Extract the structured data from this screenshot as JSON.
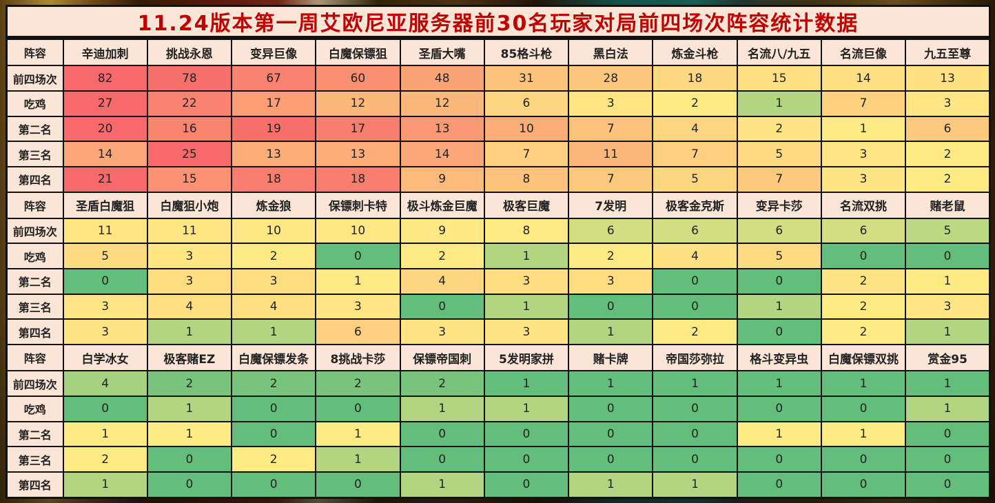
{
  "title": "11.24版本第一周艾欧尼亚服务器前30名玩家对局前四场次阵容统计数据",
  "styles": {
    "title_color": "#c00000",
    "header_bg": "#fbe5d6",
    "border_color": "#111111",
    "heat_min_color": "#63BE7B",
    "heat_mid_color": "#FFEB84",
    "heat_max_color": "#F8696B"
  },
  "chart_data": {
    "type": "heatmap",
    "title": "11.24版本第一周艾欧尼亚服务器前30名玩家对局前四场次阵容统计数据",
    "corner_label": "阵容",
    "stat_row_labels": [
      "前四场次",
      "吃鸡",
      "第二名",
      "第三名",
      "第四名"
    ],
    "color_scale_note": "3-color scale per stat row across all sections: min green #63BE7B, 50th percentile yellow #FFEB84, max red #F8696B",
    "sections": [
      {
        "comps": [
          "辛迪加刺",
          "挑战永恩",
          "变异巨像",
          "白魔保镖狙",
          "圣盾大嘴",
          "85格斗枪",
          "黑白法",
          "炼金斗枪",
          "名流八/九五",
          "名流巨像",
          "九五至尊"
        ],
        "values": [
          [
            82,
            78,
            67,
            60,
            48,
            31,
            28,
            18,
            15,
            14,
            13
          ],
          [
            27,
            22,
            17,
            12,
            12,
            6,
            3,
            2,
            1,
            7,
            3
          ],
          [
            20,
            16,
            19,
            17,
            13,
            10,
            7,
            4,
            2,
            1,
            6
          ],
          [
            14,
            25,
            13,
            13,
            14,
            7,
            11,
            7,
            5,
            3,
            2
          ],
          [
            21,
            15,
            18,
            18,
            9,
            8,
            7,
            5,
            7,
            3,
            2
          ]
        ]
      },
      {
        "comps": [
          "圣盾白魔狙",
          "白魔狙小炮",
          "炼金狼",
          "保镖刺卡特",
          "极斗炼金巨魔",
          "极客巨魔",
          "7发明",
          "极客金克斯",
          "变异卡莎",
          "名流双挑",
          "赌老鼠"
        ],
        "values": [
          [
            11,
            11,
            10,
            10,
            9,
            8,
            6,
            6,
            6,
            6,
            5
          ],
          [
            5,
            3,
            2,
            0,
            2,
            1,
            2,
            4,
            5,
            0,
            0
          ],
          [
            0,
            3,
            3,
            1,
            4,
            3,
            3,
            0,
            0,
            2,
            1
          ],
          [
            3,
            4,
            4,
            3,
            0,
            1,
            0,
            0,
            1,
            2,
            3
          ],
          [
            3,
            1,
            1,
            6,
            3,
            3,
            1,
            2,
            0,
            2,
            1
          ]
        ]
      },
      {
        "comps": [
          "白学冰女",
          "极客赌EZ",
          "白魔保镖发条",
          "8挑战卡莎",
          "保镖帝国刺",
          "5发明家拼",
          "赌卡牌",
          "帝国莎弥拉",
          "格斗变异虫",
          "白魔保镖双挑",
          "赏金95"
        ],
        "values": [
          [
            4,
            2,
            2,
            2,
            2,
            1,
            1,
            1,
            1,
            1,
            1
          ],
          [
            0,
            1,
            0,
            0,
            1,
            1,
            0,
            0,
            0,
            0,
            1
          ],
          [
            1,
            1,
            0,
            1,
            0,
            0,
            0,
            0,
            1,
            1,
            0
          ],
          [
            2,
            0,
            2,
            1,
            0,
            0,
            0,
            0,
            0,
            0,
            0
          ],
          [
            1,
            0,
            0,
            0,
            1,
            0,
            1,
            1,
            0,
            0,
            0
          ]
        ]
      }
    ]
  }
}
